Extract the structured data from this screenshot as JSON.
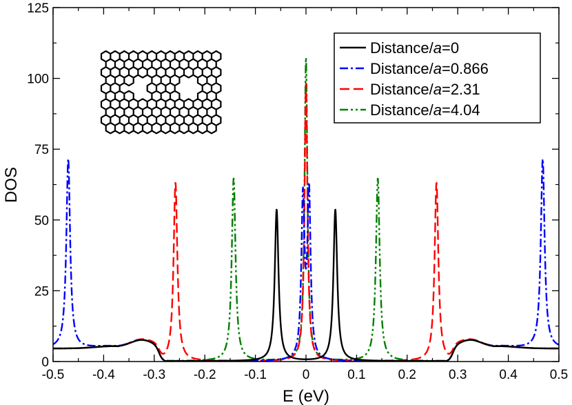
{
  "chart_data": {
    "type": "line",
    "title": "",
    "xlabel": "E (eV)",
    "ylabel": "DOS",
    "xlim": [
      -0.5,
      0.5
    ],
    "ylim": [
      0,
      125
    ],
    "x_ticks": [
      "-0.5",
      "-0.4",
      "-0.3",
      "-0.2",
      "-0.1",
      "0",
      "0.1",
      "0.2",
      "0.3",
      "0.4",
      "0.5"
    ],
    "y_ticks": [
      "0",
      "25",
      "50",
      "75",
      "100",
      "125"
    ],
    "legend_position": "top-right",
    "inset": "graphene nanoribbon lattice with two vacancy holes",
    "series": [
      {
        "name": "Distance/a=0",
        "label_prefix": "Distance/",
        "label_var": "a",
        "label_suffix": "=0",
        "color": "#000000",
        "dash": "solid",
        "peaks": [
          {
            "x": -0.058,
            "y": 53.5,
            "w": 0.0045
          },
          {
            "x": 0.058,
            "y": 53.5,
            "w": 0.0045
          }
        ],
        "band_edge": 0.29,
        "band_plateau": 5.2
      },
      {
        "name": "Distance/a=0.866",
        "label_prefix": "Distance/",
        "label_var": "a",
        "label_suffix": "=0.866",
        "color": "#0000ff",
        "dash": "dashdot",
        "peaks": [
          {
            "x": -0.47,
            "y": 67,
            "w": 0.0045
          },
          {
            "x": -0.006,
            "y": 56,
            "w": 0.0038
          },
          {
            "x": 0.006,
            "y": 58,
            "w": 0.0038
          },
          {
            "x": 0.468,
            "y": 67,
            "w": 0.0045
          }
        ],
        "band_edge": 0.29,
        "band_plateau": 5.2
      },
      {
        "name": "Distance/a=2.31",
        "label_prefix": "Distance/",
        "label_var": "a",
        "label_suffix": "=2.31",
        "color": "#ff0000",
        "dash": "dashed",
        "peaks": [
          {
            "x": -0.258,
            "y": 63,
            "w": 0.0045
          },
          {
            "x": 0.0,
            "y": 98,
            "w": 0.0035
          },
          {
            "x": 0.258,
            "y": 63,
            "w": 0.0045
          }
        ],
        "band_edge": 0.29,
        "band_plateau": 5.2
      },
      {
        "name": "Distance/a=4.04",
        "label_prefix": "Distance/",
        "label_var": "a",
        "label_suffix": "=4.04",
        "color": "#008000",
        "dash": "dashdotdot",
        "peaks": [
          {
            "x": -0.143,
            "y": 64.5,
            "w": 0.0045
          },
          {
            "x": 0.0,
            "y": 107,
            "w": 0.0035
          },
          {
            "x": 0.142,
            "y": 64.5,
            "w": 0.0045
          }
        ],
        "band_edge": 0.29,
        "band_plateau": 5.2
      }
    ]
  }
}
